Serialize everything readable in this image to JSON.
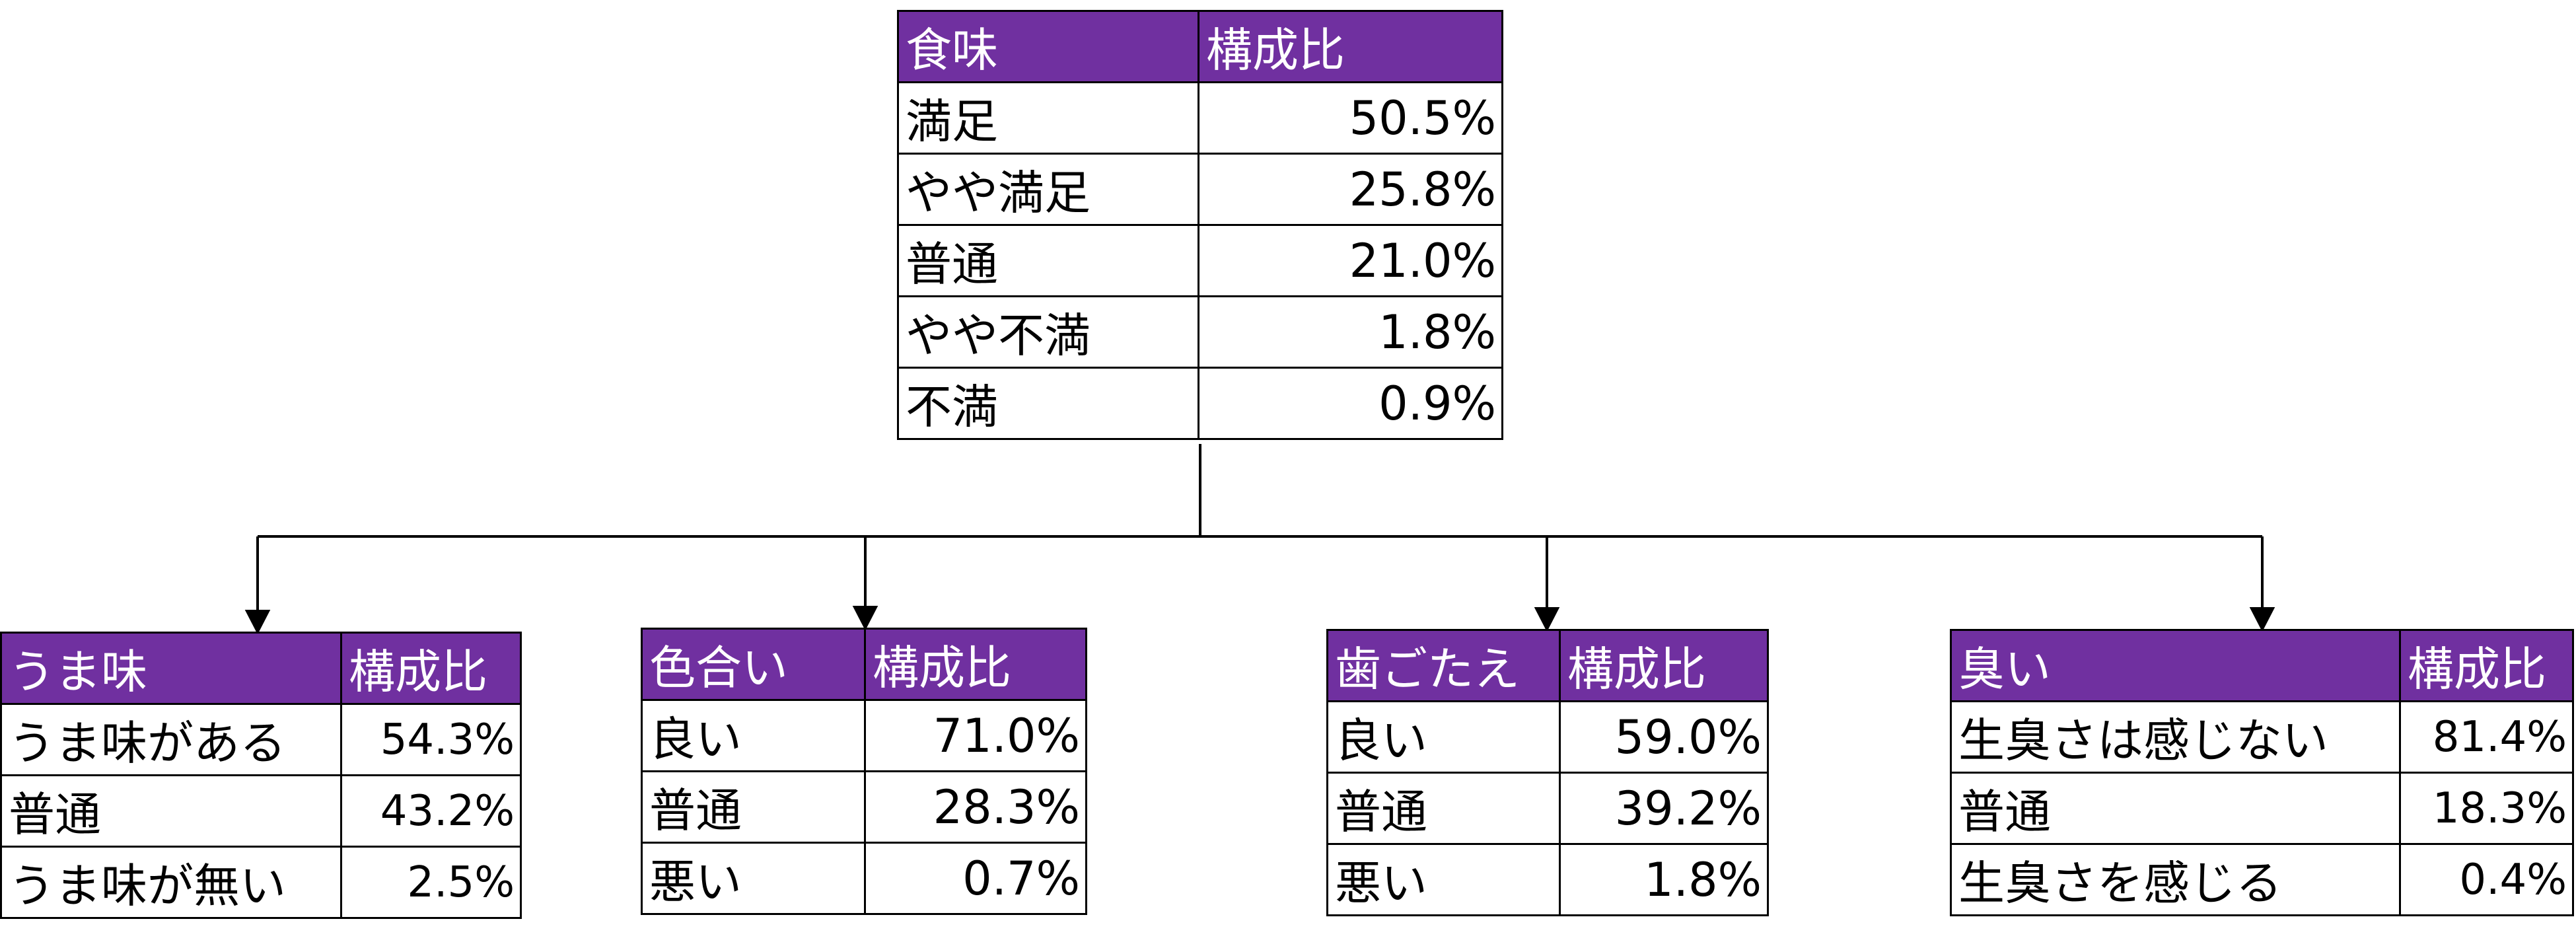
{
  "main_table": {
    "header": [
      "食味",
      "構成比"
    ],
    "rows": [
      {
        "label": "満足",
        "value": "50.5%"
      },
      {
        "label": "やや満足",
        "value": "25.8%"
      },
      {
        "label": "普通",
        "value": "21.0%"
      },
      {
        "label": "やや不満",
        "value": "1.8%"
      },
      {
        "label": "不満",
        "value": "0.9%"
      }
    ]
  },
  "sub_tables": [
    {
      "header": [
        "うま味",
        "構成比"
      ],
      "rows": [
        {
          "label": "うま味がある",
          "value": "54.3%"
        },
        {
          "label": "普通",
          "value": "43.2%"
        },
        {
          "label": "うま味が無い",
          "value": "2.5%"
        }
      ]
    },
    {
      "header": [
        "色合い",
        "構成比"
      ],
      "rows": [
        {
          "label": "良い",
          "value": "71.0%"
        },
        {
          "label": "普通",
          "value": "28.3%"
        },
        {
          "label": "悪い",
          "value": "0.7%"
        }
      ]
    },
    {
      "header": [
        "歯ごたえ",
        "構成比"
      ],
      "rows": [
        {
          "label": "良い",
          "value": "59.0%"
        },
        {
          "label": "普通",
          "value": "39.2%"
        },
        {
          "label": "悪い",
          "value": "1.8%"
        }
      ]
    },
    {
      "header": [
        "臭い",
        "構成比"
      ],
      "rows": [
        {
          "label": "生臭さは感じない",
          "value": "81.4%"
        },
        {
          "label": "普通",
          "value": "18.3%"
        },
        {
          "label": "生臭さを感じる",
          "value": "0.4%"
        }
      ]
    }
  ],
  "colors": {
    "header_bg": "#7030a0",
    "header_text": "#ffffff",
    "border": "#000000",
    "connector": "#000000"
  }
}
